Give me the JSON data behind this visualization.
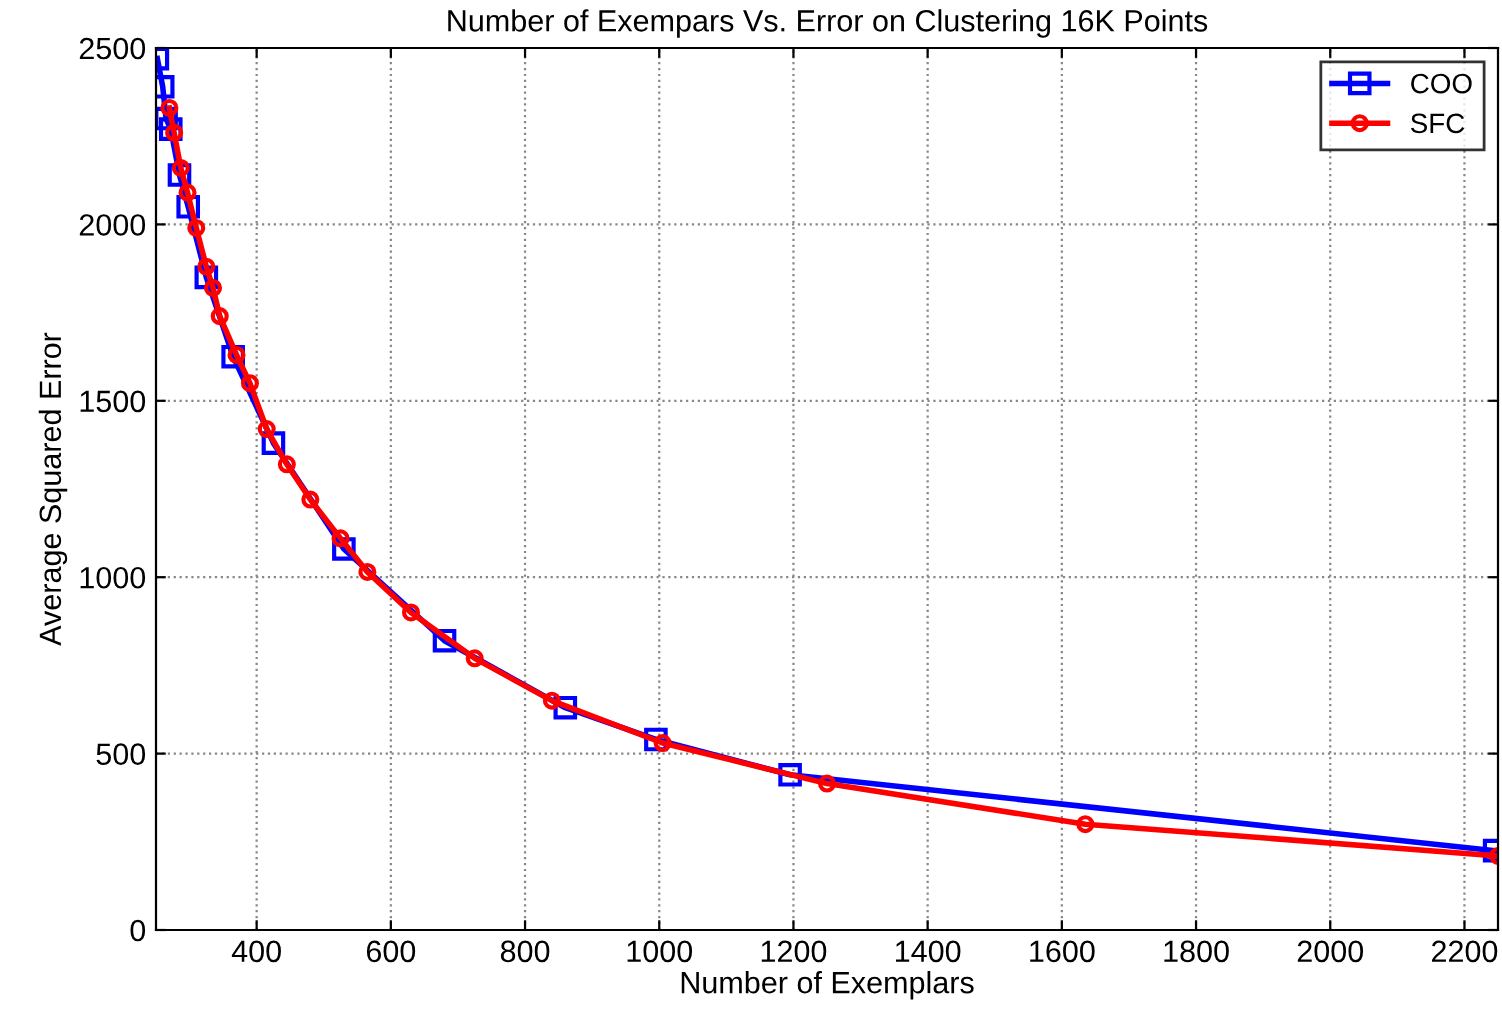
{
  "chart_data": {
    "type": "line",
    "title": "Number of Exempars Vs. Error on Clustering 16K Points",
    "xlabel": "Number of Exemplars",
    "ylabel": "Average Squared Error",
    "series": [
      {
        "name": "COO",
        "color": "#0000ff",
        "marker": "square",
        "x": [
          252,
          260,
          265,
          272,
          285,
          298,
          325,
          365,
          425,
          530,
          680,
          860,
          995,
          1195,
          2245
        ],
        "values": [
          2470,
          2390,
          2300,
          2270,
          2140,
          2050,
          1850,
          1625,
          1380,
          1080,
          820,
          630,
          540,
          440,
          225
        ]
      },
      {
        "name": "SFC",
        "color": "#ff0000",
        "marker": "circle",
        "x": [
          270,
          277,
          287,
          297,
          310,
          325,
          335,
          345,
          370,
          390,
          415,
          445,
          480,
          525,
          565,
          630,
          725,
          840,
          1005,
          1250,
          1635,
          2250
        ],
        "values": [
          2330,
          2260,
          2160,
          2090,
          1990,
          1880,
          1820,
          1740,
          1630,
          1550,
          1420,
          1320,
          1220,
          1110,
          1015,
          900,
          770,
          650,
          530,
          415,
          300,
          210
        ]
      }
    ],
    "xlim": [
      250,
      2250
    ],
    "ylim": [
      0,
      2500
    ],
    "xticks": [
      400,
      600,
      800,
      1000,
      1200,
      1400,
      1600,
      1800,
      2000,
      2200
    ],
    "yticks": [
      0,
      500,
      1000,
      1500,
      2000,
      2500
    ],
    "grid": true,
    "legend": "top right",
    "line_style": "solid"
  }
}
